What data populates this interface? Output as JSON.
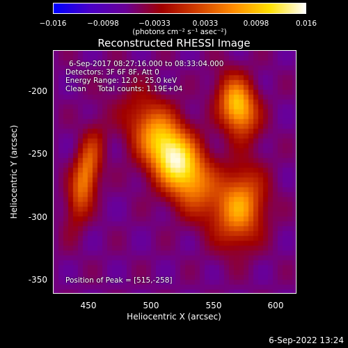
{
  "colorbar": {
    "ticks": [
      "−0.016",
      "−0.0098",
      "−0.0033",
      "0.0033",
      "0.0098",
      "0.016"
    ],
    "tick_values": [
      -0.016,
      -0.0098,
      -0.0033,
      0.0033,
      0.0098,
      0.016
    ],
    "units": "(photons cm⁻² s⁻¹ asec⁻²)",
    "colors": [
      "#0000ff",
      "#4a00c8",
      "#6a0096",
      "#a00000",
      "#d24000",
      "#ff8c00",
      "#ffe000",
      "#ffffff"
    ]
  },
  "chart_data": {
    "type": "heatmap",
    "title": "Reconstructed RHESSI Image",
    "xlabel": "Heliocentric X (arcsec)",
    "ylabel": "Heliocentric Y (arcsec)",
    "xlim": [
      420,
      613
    ],
    "ylim": [
      -374,
      -168
    ],
    "xticks": [
      450,
      500,
      550,
      600
    ],
    "yticks": [
      -200,
      -250,
      -300,
      -350
    ],
    "value_range": [
      -0.016,
      0.016
    ],
    "sources": [
      {
        "x": 515,
        "y": -258,
        "peak": 0.016
      },
      {
        "x": 566,
        "y": -215,
        "peak": 0.011
      },
      {
        "x": 568,
        "y": -300,
        "peak": 0.0075
      },
      {
        "x": 445,
        "y": -275,
        "peak": 0.0065
      }
    ],
    "annotations": {
      "time_range": "6-Sep-2017 08:27:16.000 to 08:33:04.000",
      "detectors": "Detectors: 3F 6F 8F, Att 0",
      "energy_range": "Energy Range: 12.0 - 25.0 keV",
      "method_counts": "Clean     Total counts: 1.19E+04",
      "peak_position": "Position of Peak = [515,-258]"
    }
  },
  "timestamp": "6-Sep-2022 13:24"
}
